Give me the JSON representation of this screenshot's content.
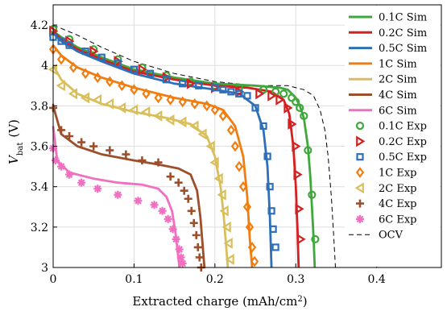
{
  "chart_data": {
    "type": "line",
    "title": "",
    "xlabel": "Extracted charge (mAh/cm²)",
    "ylabel": "V_bat (V)",
    "ylabel_main": "V",
    "ylabel_sub": "bat",
    "ylabel_unit": "(V)",
    "xlim": [
      0,
      0.48
    ],
    "ylim": [
      3.0,
      4.3
    ],
    "xticks": [
      0,
      0.1,
      0.2,
      0.3,
      0.4
    ],
    "xtick_labels": [
      "0",
      "0.1",
      "0.2",
      "0.3",
      "0.4"
    ],
    "yticks": [
      3.0,
      3.2,
      3.4,
      3.6,
      3.8,
      4.0,
      4.2
    ],
    "ytick_labels": [
      "3",
      "3.2",
      "3.4",
      "3.6",
      "3.8",
      "4",
      "4.2"
    ],
    "grid": true,
    "legend_position": "right",
    "series": [
      {
        "name": "0.1C Sim",
        "kind": "line",
        "color": "#3fa83a",
        "x": [
          0,
          0.01,
          0.03,
          0.06,
          0.1,
          0.15,
          0.2,
          0.25,
          0.28,
          0.29,
          0.3,
          0.305,
          0.31,
          0.315,
          0.318,
          0.32,
          0.322,
          0.3235
        ],
        "y": [
          4.17,
          4.14,
          4.09,
          4.04,
          3.98,
          3.94,
          3.91,
          3.9,
          3.89,
          3.88,
          3.84,
          3.8,
          3.74,
          3.6,
          3.45,
          3.3,
          3.15,
          3.0
        ]
      },
      {
        "name": "0.2C Sim",
        "kind": "line",
        "color": "#d42020",
        "x": [
          0,
          0.01,
          0.03,
          0.06,
          0.1,
          0.15,
          0.2,
          0.24,
          0.27,
          0.285,
          0.292,
          0.297,
          0.3,
          0.302,
          0.3035
        ],
        "y": [
          4.17,
          4.13,
          4.08,
          4.03,
          3.97,
          3.93,
          3.9,
          3.89,
          3.87,
          3.83,
          3.76,
          3.6,
          3.4,
          3.2,
          3.0
        ]
      },
      {
        "name": "0.5C Sim",
        "kind": "line",
        "color": "#2d6fb8",
        "x": [
          0,
          0.01,
          0.03,
          0.06,
          0.1,
          0.15,
          0.2,
          0.23,
          0.25,
          0.26,
          0.265,
          0.268,
          0.27
        ],
        "y": [
          4.16,
          4.12,
          4.07,
          4.02,
          3.96,
          3.91,
          3.88,
          3.86,
          3.8,
          3.68,
          3.5,
          3.25,
          3.0
        ]
      },
      {
        "name": "1C Sim",
        "kind": "line",
        "color": "#f07d10",
        "x": [
          0,
          0.01,
          0.03,
          0.06,
          0.1,
          0.15,
          0.19,
          0.21,
          0.225,
          0.235,
          0.24,
          0.243,
          0.246
        ],
        "y": [
          4.1,
          4.05,
          3.99,
          3.94,
          3.89,
          3.84,
          3.81,
          3.78,
          3.7,
          3.55,
          3.35,
          3.15,
          3.0
        ]
      },
      {
        "name": "2C Sim",
        "kind": "line",
        "color": "#d9be5c",
        "x": [
          0,
          0.01,
          0.03,
          0.06,
          0.1,
          0.14,
          0.17,
          0.19,
          0.2,
          0.207,
          0.211,
          0.214,
          0.216
        ],
        "y": [
          4.0,
          3.93,
          3.86,
          3.81,
          3.77,
          3.74,
          3.71,
          3.65,
          3.55,
          3.4,
          3.25,
          3.1,
          3.0
        ]
      },
      {
        "name": "4C Sim",
        "kind": "line",
        "color": "#9c4f2a",
        "x": [
          0,
          0.01,
          0.03,
          0.06,
          0.1,
          0.13,
          0.155,
          0.17,
          0.178,
          0.182,
          0.185,
          0.187
        ],
        "y": [
          3.8,
          3.66,
          3.6,
          3.56,
          3.53,
          3.51,
          3.49,
          3.46,
          3.38,
          3.25,
          3.1,
          3.0
        ]
      },
      {
        "name": "6C Sim",
        "kind": "line",
        "color": "#f06fc0",
        "x": [
          0,
          0.005,
          0.02,
          0.05,
          0.08,
          0.11,
          0.13,
          0.14,
          0.147,
          0.151,
          0.154,
          0.156
        ],
        "y": [
          3.7,
          3.53,
          3.47,
          3.44,
          3.42,
          3.41,
          3.39,
          3.35,
          3.28,
          3.18,
          3.08,
          3.0
        ]
      },
      {
        "name": "0.1C Exp",
        "kind": "scatter",
        "marker": "circle",
        "color": "#3fa83a",
        "x": [
          0,
          0.02,
          0.05,
          0.08,
          0.11,
          0.14,
          0.17,
          0.2,
          0.23,
          0.26,
          0.275,
          0.285,
          0.295,
          0.3,
          0.305,
          0.31,
          0.315,
          0.32,
          0.324
        ],
        "y": [
          4.18,
          4.13,
          4.08,
          4.03,
          3.99,
          3.95,
          3.92,
          3.9,
          3.89,
          3.88,
          3.87,
          3.86,
          3.84,
          3.82,
          3.79,
          3.75,
          3.58,
          3.36,
          3.14
        ]
      },
      {
        "name": "0.2C Exp",
        "kind": "scatter",
        "marker": "triangle-right",
        "color": "#d42020",
        "x": [
          0,
          0.02,
          0.05,
          0.08,
          0.11,
          0.14,
          0.17,
          0.2,
          0.23,
          0.255,
          0.27,
          0.28,
          0.29,
          0.295,
          0.3,
          0.302,
          0.304,
          0.306
        ],
        "y": [
          4.17,
          4.12,
          4.07,
          4.02,
          3.98,
          3.94,
          3.91,
          3.89,
          3.87,
          3.86,
          3.85,
          3.83,
          3.79,
          3.71,
          3.6,
          3.46,
          3.29,
          3.14
        ]
      },
      {
        "name": "0.5C Exp",
        "kind": "scatter",
        "marker": "square",
        "color": "#2d6fb8",
        "x": [
          0,
          0.01,
          0.02,
          0.04,
          0.06,
          0.08,
          0.1,
          0.12,
          0.14,
          0.16,
          0.18,
          0.2,
          0.21,
          0.22,
          0.23,
          0.24,
          0.25,
          0.26,
          0.265,
          0.268,
          0.27,
          0.272,
          0.275
        ],
        "y": [
          4.14,
          4.12,
          4.1,
          4.07,
          4.04,
          4.01,
          3.98,
          3.96,
          3.93,
          3.91,
          3.9,
          3.89,
          3.88,
          3.87,
          3.86,
          3.85,
          3.79,
          3.7,
          3.55,
          3.4,
          3.28,
          3.19,
          3.1
        ]
      },
      {
        "name": "1C Exp",
        "kind": "scatter",
        "marker": "diamond",
        "color": "#f07d10",
        "x": [
          0,
          0.01,
          0.025,
          0.04,
          0.055,
          0.07,
          0.085,
          0.1,
          0.115,
          0.13,
          0.145,
          0.16,
          0.175,
          0.19,
          0.2,
          0.21,
          0.22,
          0.225,
          0.23,
          0.235,
          0.24,
          0.243,
          0.246,
          0.249
        ],
        "y": [
          4.08,
          4.03,
          3.99,
          3.96,
          3.94,
          3.92,
          3.9,
          3.88,
          3.86,
          3.84,
          3.83,
          3.82,
          3.81,
          3.8,
          3.78,
          3.75,
          3.68,
          3.6,
          3.5,
          3.4,
          3.3,
          3.2,
          3.1,
          3.03
        ]
      },
      {
        "name": "2C Exp",
        "kind": "scatter",
        "marker": "triangle-left",
        "color": "#d9be5c",
        "x": [
          0,
          0.01,
          0.025,
          0.04,
          0.055,
          0.07,
          0.085,
          0.1,
          0.115,
          0.13,
          0.145,
          0.16,
          0.175,
          0.185,
          0.195,
          0.2,
          0.205,
          0.209,
          0.212,
          0.215,
          0.217,
          0.219
        ],
        "y": [
          3.98,
          3.9,
          3.86,
          3.84,
          3.83,
          3.81,
          3.79,
          3.78,
          3.77,
          3.75,
          3.73,
          3.72,
          3.7,
          3.66,
          3.6,
          3.52,
          3.44,
          3.36,
          3.28,
          3.2,
          3.12,
          3.04
        ]
      },
      {
        "name": "4C Exp",
        "kind": "scatter",
        "marker": "plus",
        "color": "#9c4f2a",
        "x": [
          0,
          0.01,
          0.02,
          0.035,
          0.05,
          0.07,
          0.09,
          0.11,
          0.13,
          0.145,
          0.155,
          0.162,
          0.167,
          0.171,
          0.174,
          0.177,
          0.179,
          0.181,
          0.183
        ],
        "y": [
          3.79,
          3.68,
          3.65,
          3.62,
          3.6,
          3.58,
          3.56,
          3.53,
          3.52,
          3.45,
          3.42,
          3.38,
          3.34,
          3.28,
          3.22,
          3.16,
          3.1,
          3.05,
          3.0
        ]
      },
      {
        "name": "6C Exp",
        "kind": "scatter",
        "marker": "asterisk",
        "color": "#f06fc0",
        "x": [
          0,
          0.003,
          0.01,
          0.02,
          0.035,
          0.055,
          0.08,
          0.105,
          0.125,
          0.135,
          0.142,
          0.148,
          0.152,
          0.156,
          0.158,
          0.16
        ],
        "y": [
          3.59,
          3.53,
          3.5,
          3.46,
          3.42,
          3.39,
          3.36,
          3.33,
          3.31,
          3.28,
          3.24,
          3.19,
          3.14,
          3.09,
          3.05,
          3.02
        ]
      },
      {
        "name": "OCV",
        "kind": "dashed",
        "color": "#000000",
        "x": [
          0,
          0.03,
          0.06,
          0.1,
          0.15,
          0.2,
          0.25,
          0.29,
          0.31,
          0.322,
          0.33,
          0.336,
          0.34,
          0.344,
          0.347,
          0.349
        ],
        "y": [
          4.2,
          4.15,
          4.09,
          4.02,
          3.96,
          3.92,
          3.9,
          3.9,
          3.88,
          3.85,
          3.78,
          3.68,
          3.55,
          3.35,
          3.15,
          3.0
        ]
      }
    ]
  }
}
